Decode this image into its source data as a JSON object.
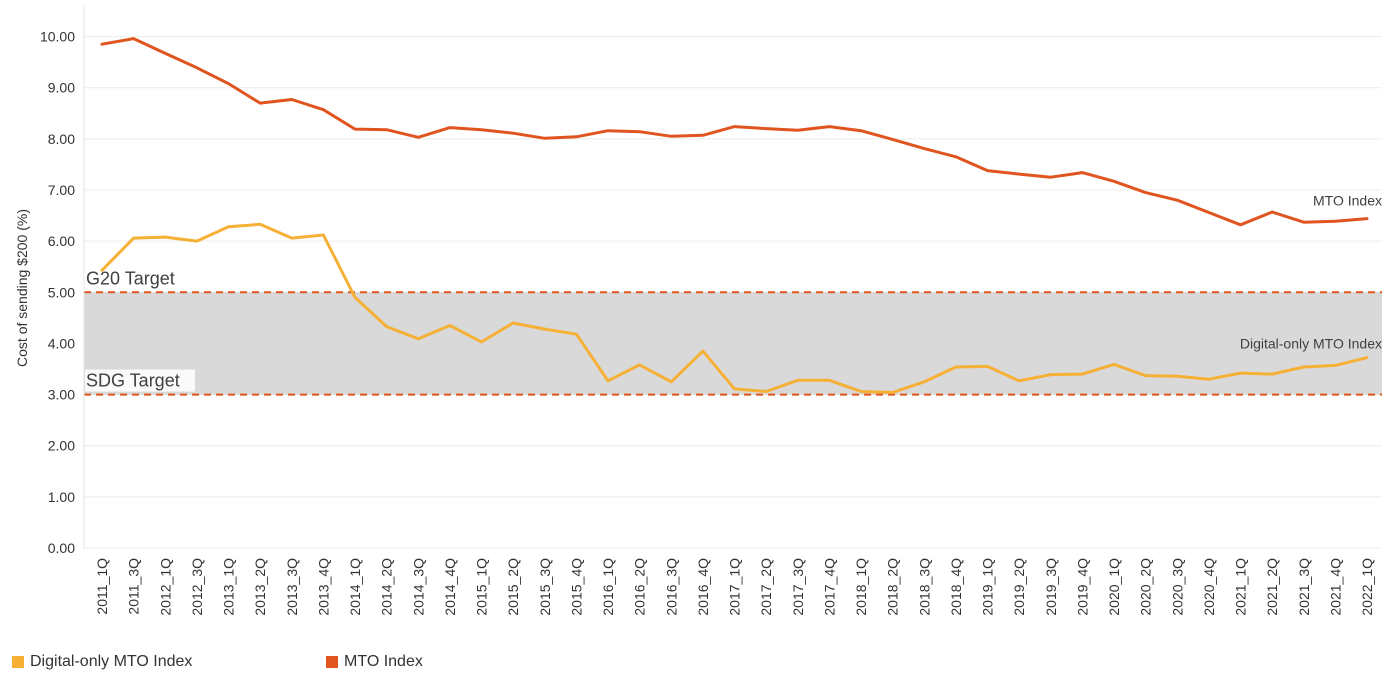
{
  "colors": {
    "digital": "#f6b036",
    "mto": "#e0541f",
    "target_line": "#e0541f",
    "band": "#d9d9d9",
    "grid": "#ececec",
    "axis_text": "#333333"
  },
  "chart_data": {
    "type": "line",
    "title": "",
    "xlabel": "",
    "ylabel": "Cost of sending $200 (%)",
    "ylim": [
      0,
      10.5
    ],
    "y_ticks": [
      "0.00",
      "1.00",
      "2.00",
      "3.00",
      "4.00",
      "5.00",
      "6.00",
      "7.00",
      "8.00",
      "9.00",
      "10.00"
    ],
    "grid": true,
    "legend_position": "bottom-left",
    "categories": [
      "2011_1Q",
      "2011_3Q",
      "2012_1Q",
      "2012_3Q",
      "2013_1Q",
      "2013_2Q",
      "2013_3Q",
      "2013_4Q",
      "2014_1Q",
      "2014_2Q",
      "2014_3Q",
      "2014_4Q",
      "2015_1Q",
      "2015_2Q",
      "2015_3Q",
      "2015_4Q",
      "2016_1Q",
      "2016_2Q",
      "2016_3Q",
      "2016_4Q",
      "2017_1Q",
      "2017_2Q",
      "2017_3Q",
      "2017_4Q",
      "2018_1Q",
      "2018_2Q",
      "2018_3Q",
      "2018_4Q",
      "2019_1Q",
      "2019_2Q",
      "2019_3Q",
      "2019_4Q",
      "2020_1Q",
      "2020_2Q",
      "2020_3Q",
      "2020_4Q",
      "2021_1Q",
      "2021_2Q",
      "2021_3Q",
      "2021_4Q",
      "2022_1Q"
    ],
    "series": [
      {
        "name": "Digital-only MTO Index",
        "color_key": "digital",
        "end_label": "Digital-only MTO Index",
        "values": [
          5.43,
          6.06,
          6.08,
          6.0,
          6.28,
          6.33,
          6.06,
          6.12,
          4.9,
          4.33,
          4.09,
          4.35,
          4.03,
          4.4,
          4.28,
          4.18,
          3.27,
          3.58,
          3.25,
          3.85,
          3.11,
          3.06,
          3.28,
          3.28,
          3.06,
          3.04,
          3.25,
          3.54,
          3.55,
          3.27,
          3.39,
          3.4,
          3.59,
          3.37,
          3.36,
          3.3,
          3.42,
          3.4,
          3.54,
          3.57,
          3.72
        ]
      },
      {
        "name": "MTO Index",
        "color_key": "mto",
        "end_label": "MTO Index",
        "values": [
          9.85,
          9.96,
          9.67,
          9.39,
          9.08,
          8.7,
          8.77,
          8.57,
          8.19,
          8.18,
          8.03,
          8.22,
          8.18,
          8.11,
          8.01,
          8.04,
          8.16,
          8.14,
          8.05,
          8.07,
          8.24,
          8.2,
          8.17,
          8.24,
          8.16,
          7.99,
          7.81,
          7.65,
          7.38,
          7.31,
          7.25,
          7.34,
          7.17,
          6.95,
          6.8,
          6.56,
          6.32,
          6.57,
          6.37,
          6.39,
          6.44
        ]
      }
    ],
    "reference_lines": [
      {
        "label": "G20 Target",
        "value": 5.0
      },
      {
        "label": "SDG Target",
        "value": 3.0
      }
    ],
    "shaded_band": [
      3.0,
      5.0
    ]
  }
}
